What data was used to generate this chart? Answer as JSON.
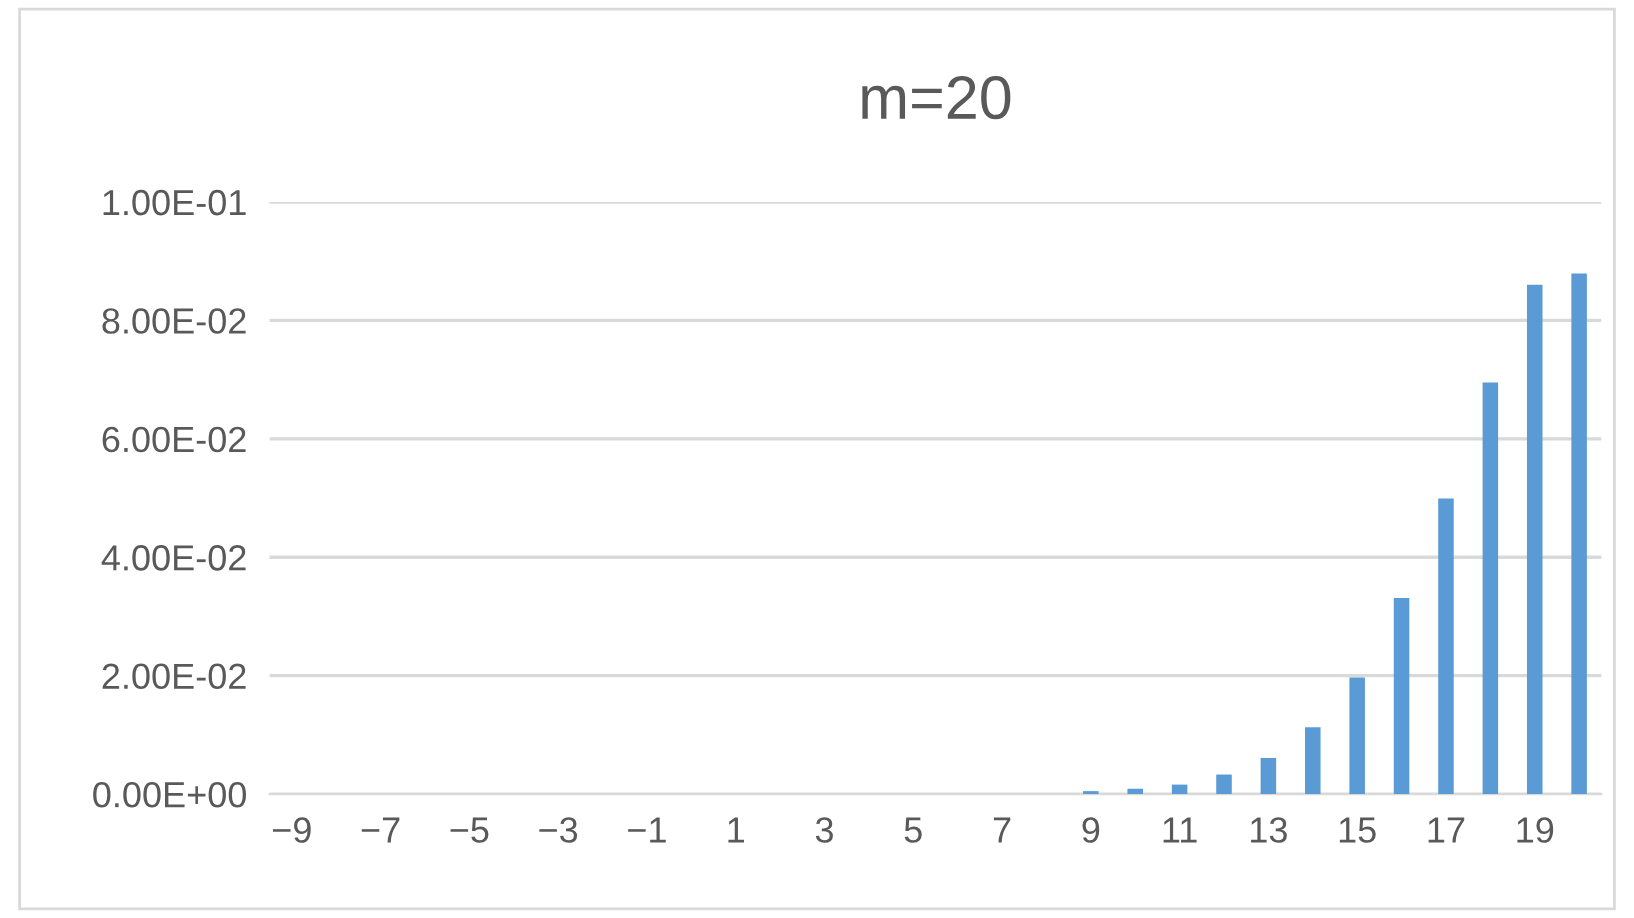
{
  "chart_data": {
    "type": "bar",
    "title": "m=20",
    "categories": [
      "−9",
      null,
      "−7",
      null,
      "−5",
      null,
      "−3",
      null,
      "−1",
      null,
      "1",
      null,
      "3",
      null,
      "5",
      null,
      "7",
      null,
      "9",
      null,
      "11",
      null,
      "13",
      null,
      "15",
      null,
      "17",
      null,
      "19",
      null
    ],
    "values": [
      0,
      0,
      0,
      0,
      0,
      0,
      0,
      0,
      0,
      0,
      0,
      0,
      0,
      0,
      0,
      0,
      0,
      0,
      0.0005,
      0.0009,
      0.0016,
      0.0033,
      0.0061,
      0.0113,
      0.0197,
      0.0331,
      0.0499,
      0.0695,
      0.086,
      0.0879
    ],
    "color": "#5b9bd5",
    "ylim": [
      0,
      0.1
    ],
    "yticks": [
      {
        "value": 0,
        "label": "0.00E+00"
      },
      {
        "value": 0.02,
        "label": "2.00E-02"
      },
      {
        "value": 0.04,
        "label": "4.00E-02"
      },
      {
        "value": 0.06,
        "label": "6.00E-02"
      },
      {
        "value": 0.08,
        "label": "8.00E-02"
      },
      {
        "value": 0.1,
        "label": "1.00E-01"
      }
    ],
    "grid": "y",
    "legend": false
  }
}
